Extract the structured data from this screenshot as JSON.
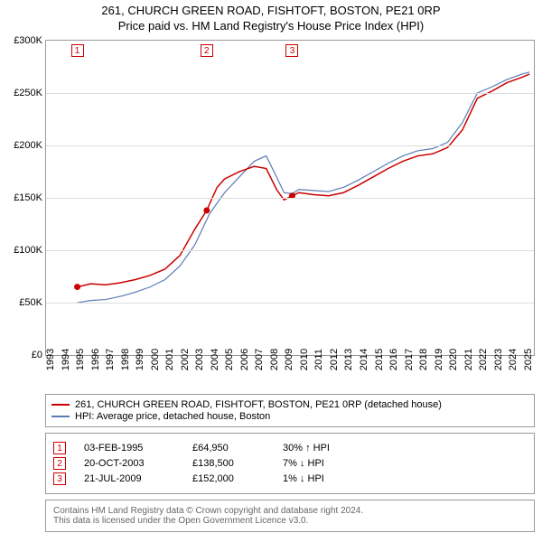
{
  "title_line1": "261, CHURCH GREEN ROAD, FISHTOFT, BOSTON, PE21 0RP",
  "title_line2": "Price paid vs. HM Land Registry's House Price Index (HPI)",
  "chart": {
    "type": "line",
    "background_color": "#ffffff",
    "grid_color": "#dddddd",
    "border_color": "#999999",
    "x_min": 1993,
    "x_max": 2025.8,
    "y_min": 0,
    "y_max": 300,
    "y_ticks": [
      0,
      50,
      100,
      150,
      200,
      250,
      300
    ],
    "y_tick_labels": [
      "£0",
      "£50K",
      "£100K",
      "£150K",
      "£200K",
      "£250K",
      "£300K"
    ],
    "x_ticks": [
      1993,
      1994,
      1995,
      1996,
      1997,
      1998,
      1999,
      2000,
      2001,
      2002,
      2003,
      2004,
      2005,
      2006,
      2007,
      2008,
      2009,
      2010,
      2011,
      2012,
      2013,
      2014,
      2015,
      2016,
      2017,
      2018,
      2019,
      2020,
      2021,
      2022,
      2023,
      2024,
      2025
    ],
    "series_red": {
      "color": "#cc0000",
      "width": 1.5,
      "data": [
        [
          1995.1,
          65
        ],
        [
          1996,
          68
        ],
        [
          1997,
          67
        ],
        [
          1998,
          69
        ],
        [
          1999,
          72
        ],
        [
          2000,
          76
        ],
        [
          2001,
          82
        ],
        [
          2002,
          95
        ],
        [
          2003,
          120
        ],
        [
          2003.8,
          138
        ],
        [
          2004.5,
          160
        ],
        [
          2005,
          168
        ],
        [
          2006,
          175
        ],
        [
          2007,
          180
        ],
        [
          2007.8,
          178
        ],
        [
          2008.5,
          158
        ],
        [
          2009,
          148
        ],
        [
          2009.55,
          152
        ],
        [
          2010,
          155
        ],
        [
          2011,
          153
        ],
        [
          2012,
          152
        ],
        [
          2013,
          155
        ],
        [
          2014,
          162
        ],
        [
          2015,
          170
        ],
        [
          2016,
          178
        ],
        [
          2017,
          185
        ],
        [
          2018,
          190
        ],
        [
          2019,
          192
        ],
        [
          2020,
          198
        ],
        [
          2021,
          215
        ],
        [
          2022,
          245
        ],
        [
          2023,
          252
        ],
        [
          2024,
          260
        ],
        [
          2025,
          265
        ],
        [
          2025.5,
          268
        ]
      ]
    },
    "series_blue": {
      "color": "#5b7bb4",
      "width": 1.2,
      "data": [
        [
          1995.1,
          50
        ],
        [
          1996,
          52
        ],
        [
          1997,
          53
        ],
        [
          1998,
          56
        ],
        [
          1999,
          60
        ],
        [
          2000,
          65
        ],
        [
          2001,
          72
        ],
        [
          2002,
          85
        ],
        [
          2003,
          105
        ],
        [
          2004,
          135
        ],
        [
          2005,
          155
        ],
        [
          2006,
          170
        ],
        [
          2007,
          185
        ],
        [
          2007.8,
          190
        ],
        [
          2008.5,
          170
        ],
        [
          2009,
          155
        ],
        [
          2009.55,
          154
        ],
        [
          2010,
          158
        ],
        [
          2011,
          157
        ],
        [
          2012,
          156
        ],
        [
          2013,
          160
        ],
        [
          2014,
          167
        ],
        [
          2015,
          175
        ],
        [
          2016,
          183
        ],
        [
          2017,
          190
        ],
        [
          2018,
          195
        ],
        [
          2019,
          197
        ],
        [
          2020,
          203
        ],
        [
          2021,
          222
        ],
        [
          2022,
          250
        ],
        [
          2023,
          256
        ],
        [
          2024,
          263
        ],
        [
          2025,
          268
        ],
        [
          2025.5,
          270
        ]
      ]
    },
    "sale_points": [
      {
        "n": "1",
        "x": 1995.1,
        "y": 65
      },
      {
        "n": "2",
        "x": 2003.8,
        "y": 138
      },
      {
        "n": "3",
        "x": 2009.55,
        "y": 152
      }
    ]
  },
  "legend": {
    "items": [
      {
        "color": "#cc0000",
        "label": "261, CHURCH GREEN ROAD, FISHTOFT, BOSTON, PE21 0RP (detached house)"
      },
      {
        "color": "#5b7bb4",
        "label": "HPI: Average price, detached house, Boston"
      }
    ]
  },
  "sales": [
    {
      "n": "1",
      "date": "03-FEB-1995",
      "price": "£64,950",
      "pct": "30%",
      "arrow": "↑",
      "vs": "HPI"
    },
    {
      "n": "2",
      "date": "20-OCT-2003",
      "price": "£138,500",
      "pct": "7%",
      "arrow": "↓",
      "vs": "HPI"
    },
    {
      "n": "3",
      "date": "21-JUL-2009",
      "price": "£152,000",
      "pct": "1%",
      "arrow": "↓",
      "vs": "HPI"
    }
  ],
  "footer_line1": "Contains HM Land Registry data © Crown copyright and database right 2024.",
  "footer_line2": "This data is licensed under the Open Government Licence v3.0."
}
